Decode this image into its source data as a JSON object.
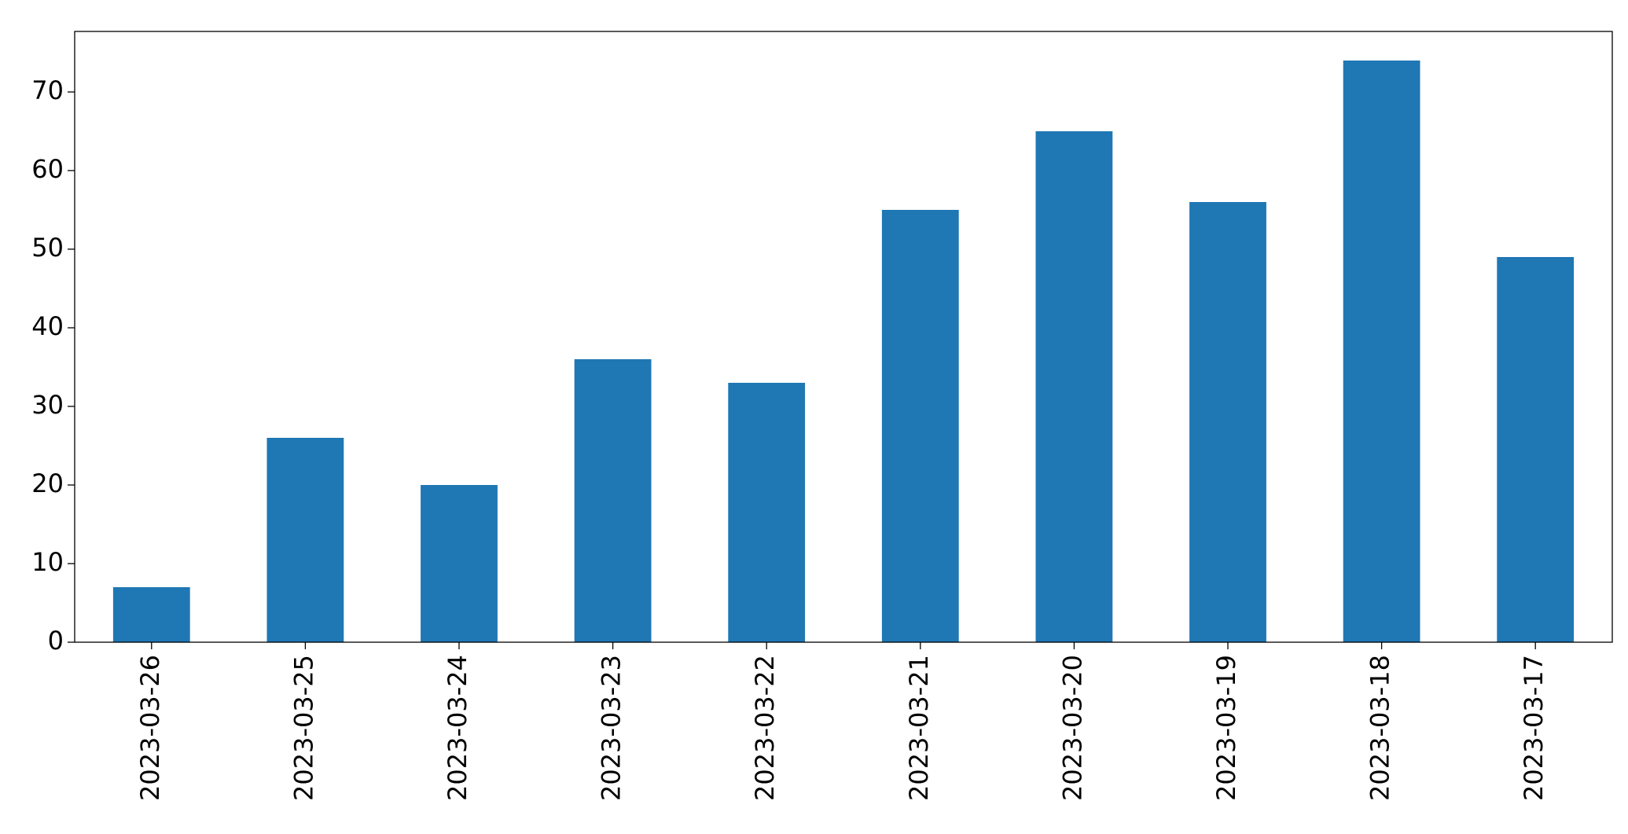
{
  "chart_data": {
    "type": "bar",
    "categories": [
      "2023-03-26",
      "2023-03-25",
      "2023-03-24",
      "2023-03-23",
      "2023-03-22",
      "2023-03-21",
      "2023-03-20",
      "2023-03-19",
      "2023-03-18",
      "2023-03-17"
    ],
    "values": [
      7,
      26,
      20,
      36,
      33,
      55,
      65,
      56,
      74,
      49
    ],
    "color": "#1f77b4",
    "ylim": [
      0,
      77.7
    ],
    "yticks": [
      0,
      10,
      20,
      30,
      40,
      50,
      60,
      70
    ],
    "grid": false
  }
}
